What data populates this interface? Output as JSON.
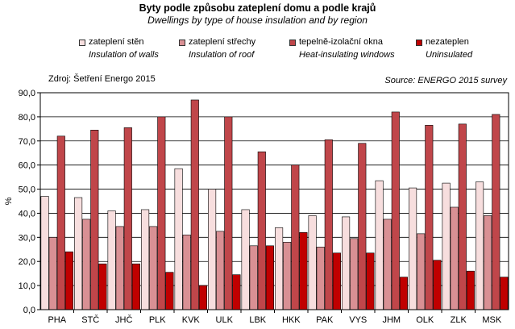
{
  "chart_data": {
    "type": "bar",
    "title": "Byty podle způsobu zateplení domu a podle krajů",
    "subtitle": "Dwellings by type of house insulation and by region",
    "ylabel": "%",
    "xlabel": "",
    "ylim": [
      0,
      90
    ],
    "yticks": [
      "0,0",
      "10,0",
      "20,0",
      "30,0",
      "40,0",
      "50,0",
      "60,0",
      "70,0",
      "80,0",
      "90,0"
    ],
    "grid": true,
    "legend_position": "top",
    "source_cz": "Zdroj: Šetření Energo 2015",
    "source_en": "Source: ENERGO 2015 survey",
    "categories": [
      "PHA",
      "STČ",
      "JHČ",
      "PLK",
      "KVK",
      "ULK",
      "LBK",
      "HKK",
      "PAK",
      "VYS",
      "JHM",
      "OLK",
      "ZLK",
      "MSK"
    ],
    "series": [
      {
        "name": "zateplení stěn",
        "name_en": "Insulation of walls",
        "color": "#f7dede",
        "values": [
          47,
          46.5,
          41,
          41.5,
          58.5,
          50,
          41.5,
          34,
          39,
          38.5,
          53.5,
          50.5,
          52.5,
          53
        ]
      },
      {
        "name": "zateplení střechy",
        "name_en": "Insulation of roof",
        "color": "#d99094",
        "values": [
          30,
          37.5,
          34.5,
          34.5,
          31,
          32.5,
          26.5,
          28,
          26,
          29.5,
          37.5,
          31.5,
          42.5,
          39
        ]
      },
      {
        "name": "tepelně-izolační okna",
        "name_en": "Heat-insulating windows",
        "color": "#c0464a",
        "values": [
          72,
          74.5,
          75.5,
          80,
          87,
          80,
          65.5,
          60,
          70.5,
          69,
          82,
          76.5,
          77,
          81
        ]
      },
      {
        "name": "nezateplen",
        "name_en": "Uninsulated",
        "color": "#c00000",
        "values": [
          24,
          19,
          19,
          15.5,
          10,
          14.5,
          26.5,
          32,
          23.5,
          23.5,
          13.5,
          20.5,
          16,
          13.5
        ]
      }
    ]
  }
}
